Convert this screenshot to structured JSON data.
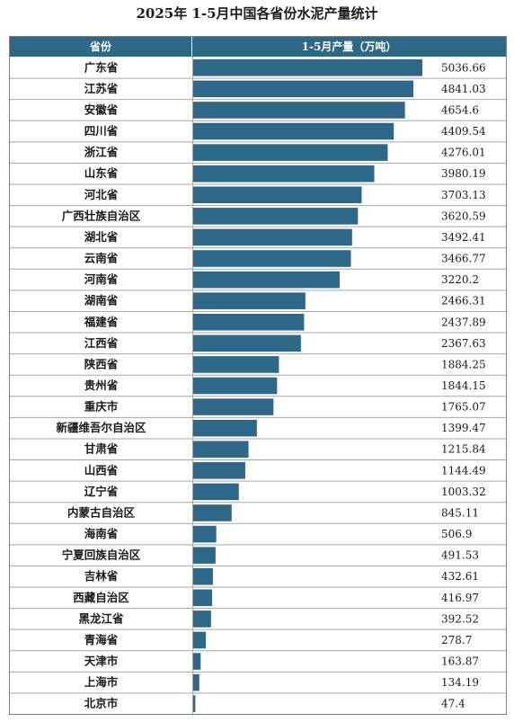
{
  "title": "2025年 1-5月中国各省份水泥产量统计",
  "header": {
    "name_col": "省份",
    "value_col": "1-5月产量（万吨）"
  },
  "colors": {
    "header_bg": "#2e6889",
    "bar": "#2e6889",
    "grid": "#a6a6a6",
    "text": "#1a1a1a"
  },
  "chart_data": {
    "type": "bar",
    "orientation": "horizontal",
    "unit": "万吨",
    "categories": [
      "广东省",
      "江苏省",
      "安徽省",
      "四川省",
      "浙江省",
      "山东省",
      "河北省",
      "广西壮族自治区",
      "湖北省",
      "云南省",
      "河南省",
      "湖南省",
      "福建省",
      "江西省",
      "陕西省",
      "贵州省",
      "重庆市",
      "新疆维吾尔自治区",
      "甘肃省",
      "山西省",
      "辽宁省",
      "内蒙古自治区",
      "海南省",
      "宁夏回族自治区",
      "吉林省",
      "西藏自治区",
      "黑龙江省",
      "青海省",
      "天津市",
      "上海市",
      "北京市"
    ],
    "values": [
      5036.66,
      4841.03,
      4654.6,
      4409.54,
      4276.01,
      3980.19,
      3703.13,
      3620.59,
      3492.41,
      3466.77,
      3220.2,
      2466.31,
      2437.89,
      2367.63,
      1884.25,
      1844.15,
      1765.07,
      1399.47,
      1215.84,
      1144.49,
      1003.32,
      845.11,
      506.9,
      491.53,
      432.61,
      416.97,
      392.52,
      278.7,
      163.87,
      134.19,
      47.4
    ],
    "value_labels": [
      "5036.66",
      "4841.03",
      "4654.6",
      "4409.54",
      "4276.01",
      "3980.19",
      "3703.13",
      "3620.59",
      "3492.41",
      "3466.77",
      "3220.2",
      "2466.31",
      "2437.89",
      "2367.63",
      "1884.25",
      "1844.15",
      "1765.07",
      "1399.47",
      "1215.84",
      "1144.49",
      "1003.32",
      "845.11",
      "506.9",
      "491.53",
      "432.61",
      "416.97",
      "392.52",
      "278.7",
      "163.87",
      "134.19",
      "47.4"
    ]
  }
}
